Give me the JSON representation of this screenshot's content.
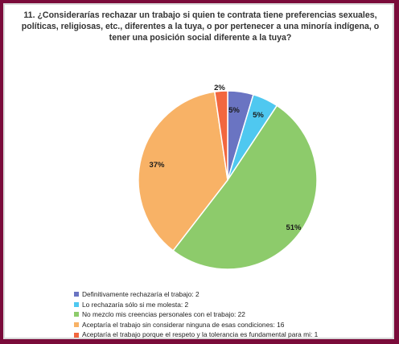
{
  "chart_data": {
    "type": "pie",
    "title": "11. ¿Considerarías rechazar un trabajo si quien te contrata tiene preferencias sexuales, políticas, religiosas, etc., diferentes a la tuya, o por pertenecer a una minoría indígena, o tener una posición social diferente a la tuya?",
    "legend_position": "bottom",
    "slices": [
      {
        "label": "Definitivamente rechazaría el trabajo: 2",
        "value": 2,
        "percent_label": "5%",
        "color": "#6a74c2"
      },
      {
        "label": "Lo rechazaría sólo si me molesta: 2",
        "value": 2,
        "percent_label": "5%",
        "color": "#4fc8f0"
      },
      {
        "label": "No mezclo mis creencias personales con el trabajo: 22",
        "value": 22,
        "percent_label": "51%",
        "color": "#8dcb6b"
      },
      {
        "label": "Aceptaría el trabajo sin considerar ninguna de esas condiciones: 16",
        "value": 16,
        "percent_label": "37%",
        "color": "#f8b266"
      },
      {
        "label": "Aceptaría el trabajo porque el respeto y la tolerancia es fundamental para mi: 1",
        "value": 1,
        "percent_label": "2%",
        "color": "#f2673f"
      }
    ]
  }
}
